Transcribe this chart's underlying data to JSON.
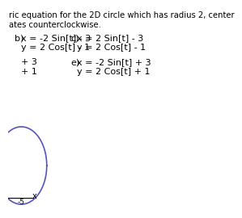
{
  "background_color": "#ffffff",
  "title_text": "ric equation for the 2D circle which has radius 2, center",
  "subtitle_text": "ates counterclockwise.",
  "b_label": "b)",
  "b_line1": "x = -2 Sin[t] - 3",
  "b_line2": "y = 2 Cos[t] - 1",
  "c_label": "c)",
  "c_line1": "x = 2 Sin[t] - 3",
  "c_line2": "y = 2 Cos[t] - 1",
  "d_line1": "+ 3",
  "d_line2": "+ 1",
  "e_label": "e)",
  "e_line1": "x = -2 Sin[t] + 3",
  "e_line2": "y = 2 Cos[t] + 1",
  "circle_color": "#5555bb",
  "tick_label": "-5",
  "axis_label": "x"
}
